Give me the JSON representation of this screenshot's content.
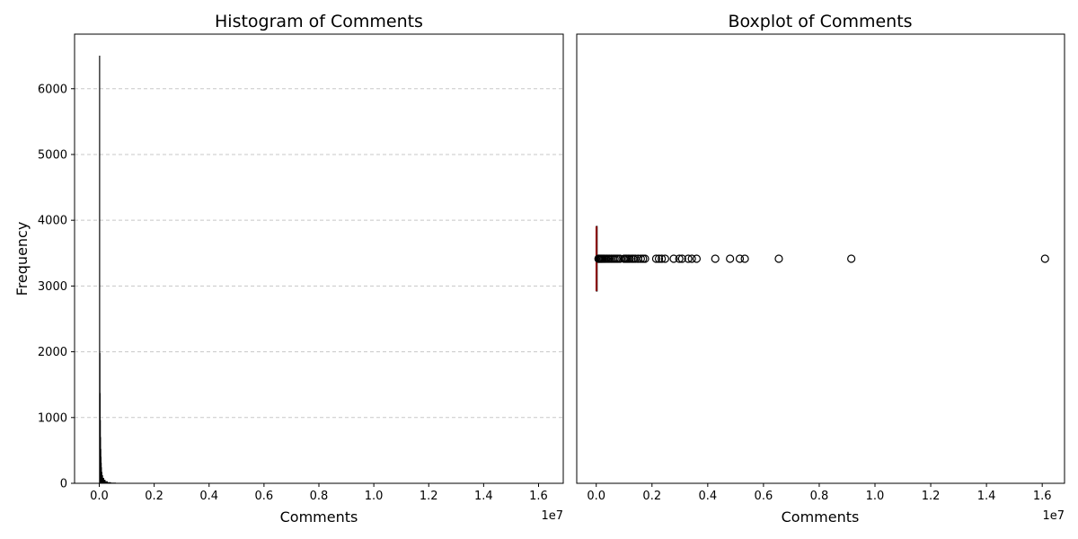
{
  "chart_data": [
    {
      "type": "histogram",
      "title": "Histogram of Comments",
      "xlabel": "Comments",
      "ylabel": "Frequency",
      "x_scale_label": "1e7",
      "xlim": [
        -900000,
        16900000
      ],
      "ylim": [
        0,
        6830
      ],
      "x_ticks": [
        0,
        2000000,
        4000000,
        6000000,
        8000000,
        10000000,
        12000000,
        14000000,
        16000000
      ],
      "x_tick_labels": [
        "0.0",
        "0.2",
        "0.4",
        "0.6",
        "0.8",
        "1.0",
        "1.2",
        "1.4",
        "1.6"
      ],
      "y_ticks": [
        0,
        1000,
        2000,
        3000,
        4000,
        5000,
        6000
      ],
      "y_tick_labels": [
        "0",
        "1000",
        "2000",
        "3000",
        "4000",
        "5000",
        "6000"
      ],
      "grid": "y-dashed",
      "bar_color": "#000000",
      "bins": [
        {
          "x0": 0,
          "x1": 8000,
          "count": 6500
        },
        {
          "x0": 8000,
          "x1": 16000,
          "count": 1980
        },
        {
          "x0": 16000,
          "x1": 24000,
          "count": 1370
        },
        {
          "x0": 24000,
          "x1": 32000,
          "count": 960
        },
        {
          "x0": 32000,
          "x1": 40000,
          "count": 700
        },
        {
          "x0": 40000,
          "x1": 48000,
          "count": 520
        },
        {
          "x0": 48000,
          "x1": 56000,
          "count": 400
        },
        {
          "x0": 56000,
          "x1": 64000,
          "count": 310
        },
        {
          "x0": 64000,
          "x1": 80000,
          "count": 240
        },
        {
          "x0": 80000,
          "x1": 100000,
          "count": 170
        },
        {
          "x0": 100000,
          "x1": 130000,
          "count": 120
        },
        {
          "x0": 130000,
          "x1": 170000,
          "count": 80
        },
        {
          "x0": 170000,
          "x1": 220000,
          "count": 50
        },
        {
          "x0": 220000,
          "x1": 300000,
          "count": 28
        },
        {
          "x0": 300000,
          "x1": 420000,
          "count": 14
        },
        {
          "x0": 420000,
          "x1": 600000,
          "count": 7
        },
        {
          "x0": 600000,
          "x1": 900000,
          "count": 3
        }
      ]
    },
    {
      "type": "boxplot",
      "title": "Boxplot of Comments",
      "xlabel": "Comments",
      "x_scale_label": "1e7",
      "orientation": "horizontal",
      "xlim": [
        -700000,
        16800000
      ],
      "x_ticks": [
        0,
        2000000,
        4000000,
        6000000,
        8000000,
        10000000,
        12000000,
        14000000,
        16000000
      ],
      "x_tick_labels": [
        "0.0",
        "0.2",
        "0.4",
        "0.6",
        "0.8",
        "1.0",
        "1.2",
        "1.4",
        "1.6"
      ],
      "median_color": "#8b0000",
      "box": {
        "whisker_low": 0,
        "q1": 2000,
        "median": 8000,
        "q3": 30000,
        "whisker_high": 70000
      },
      "outliers": [
        80000,
        100000,
        120000,
        150000,
        180000,
        210000,
        250000,
        290000,
        330000,
        380000,
        430000,
        480000,
        540000,
        600000,
        660000,
        720000,
        780000,
        850000,
        1000000,
        1050000,
        1100000,
        1150000,
        1200000,
        1270000,
        1330000,
        1400000,
        1500000,
        1600000,
        1680000,
        1750000,
        2150000,
        2250000,
        2350000,
        2470000,
        2780000,
        2980000,
        3080000,
        3300000,
        3430000,
        3600000,
        4270000,
        4800000,
        5150000,
        5330000,
        6550000,
        9150000,
        16100000
      ]
    }
  ]
}
